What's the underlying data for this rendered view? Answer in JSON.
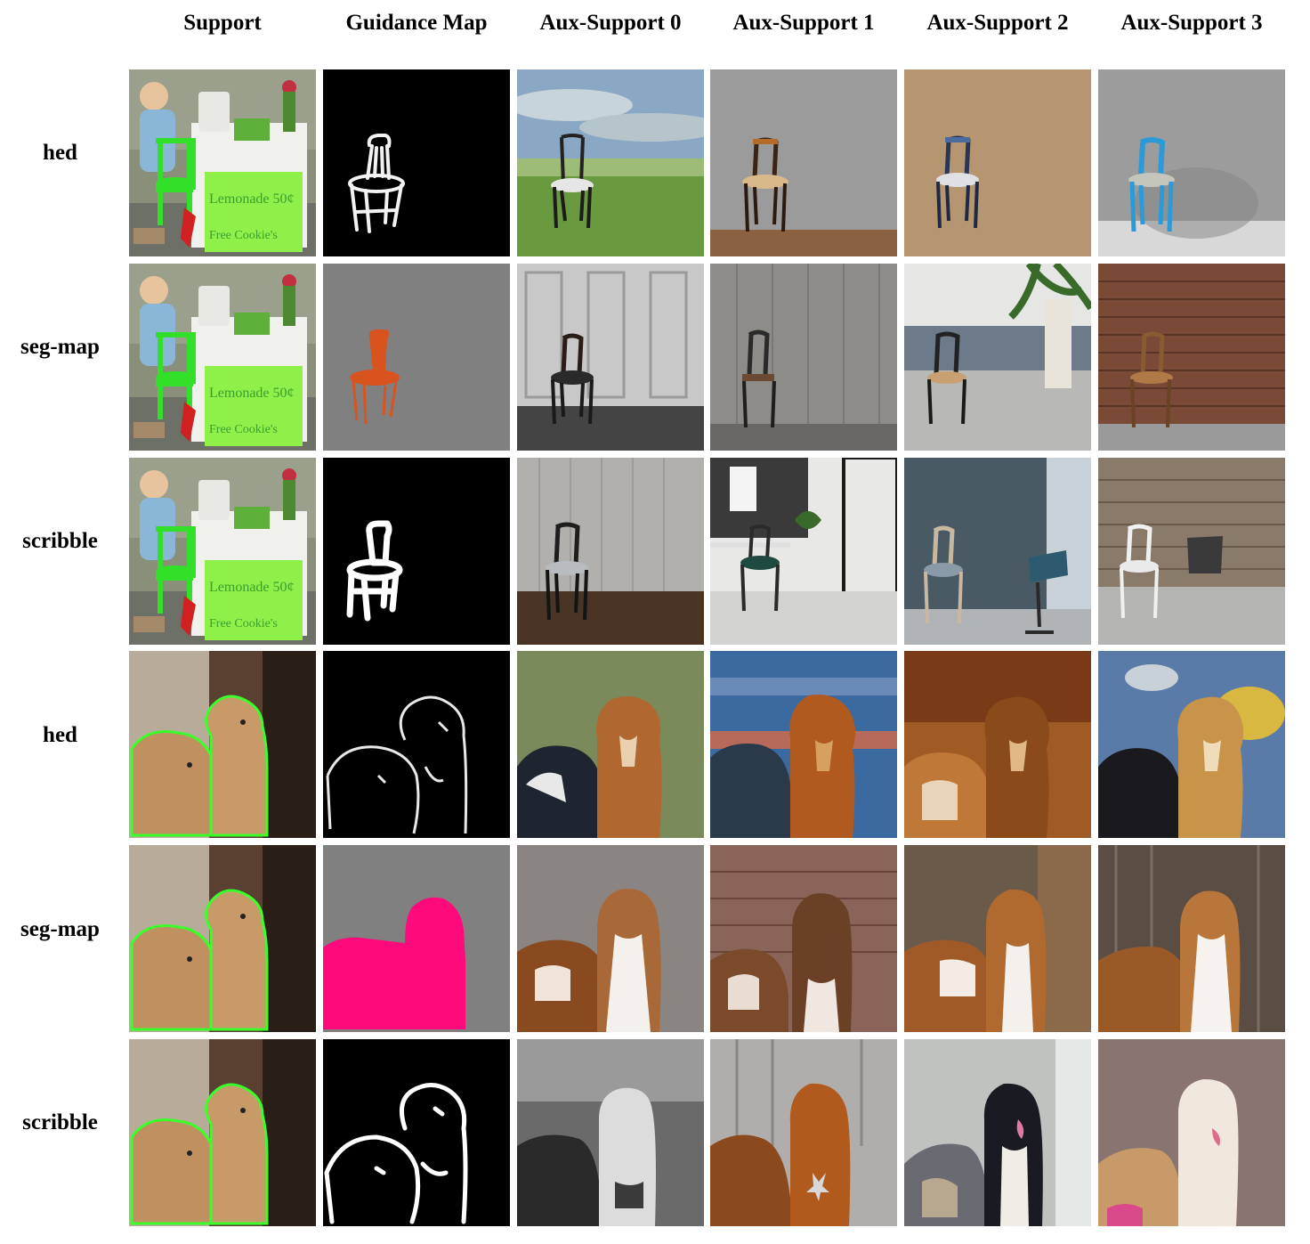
{
  "columns": [
    "Support",
    "Guidance Map",
    "Aux-Support 0",
    "Aux-Support 1",
    "Aux-Support 2",
    "Aux-Support 3"
  ],
  "rows": [
    {
      "label": "hed"
    },
    {
      "label": "seg-map"
    },
    {
      "label": "scribble"
    },
    {
      "label": "hed"
    },
    {
      "label": "seg-map"
    },
    {
      "label": "scribble"
    }
  ],
  "support_sign": {
    "line1": "Lemonade 50¢",
    "line2": "Free Cookie's"
  }
}
